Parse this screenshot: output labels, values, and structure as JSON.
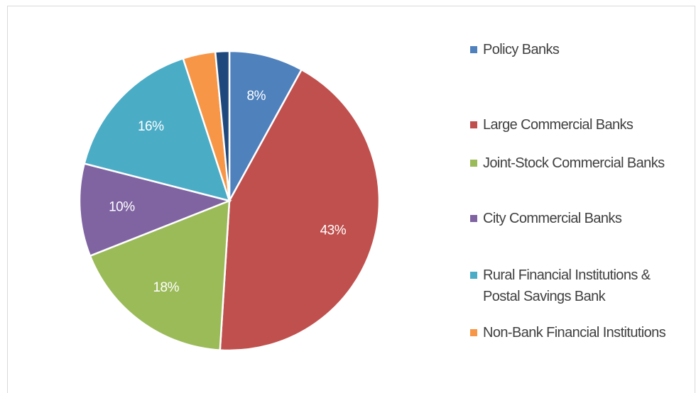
{
  "chart_data": {
    "type": "pie",
    "categories": [
      "Policy Banks",
      "Large Commercial Banks",
      "Joint-Stock Commercial Banks",
      "City Commercial Banks",
      "Rural Financial Institutions & Postal Savings Bank",
      "Non-Bank Financial Institutions",
      null
    ],
    "values": [
      8,
      43,
      18,
      10,
      16,
      3.5,
      1.5
    ],
    "value_labels": [
      "8%",
      "43%",
      "18%",
      "10%",
      "16%",
      null,
      null
    ],
    "colors": [
      "#4f81bd",
      "#c0504d",
      "#9bbb59",
      "#8064a2",
      "#4bacc6",
      "#f79646",
      "#1f497d"
    ],
    "legend": "right"
  }
}
